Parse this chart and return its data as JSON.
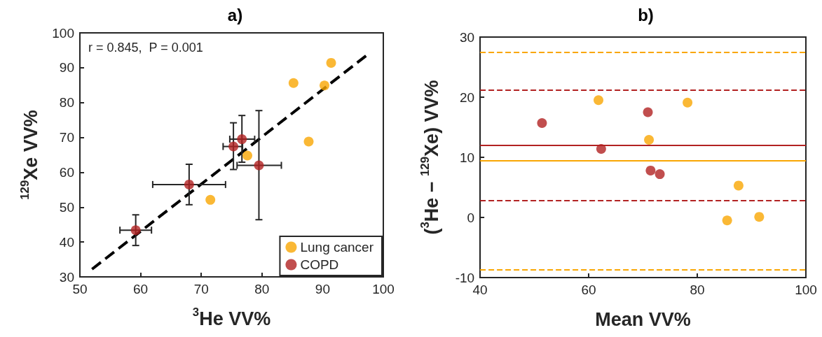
{
  "chart_data": [
    {
      "type": "scatter",
      "title": "a)",
      "xlabel": "$^{3}$He VV%",
      "ylabel": "$^{129}$Xe VV%",
      "xlim": [
        50,
        100
      ],
      "xticks": [
        50,
        60,
        70,
        80,
        90,
        100
      ],
      "ylim": [
        30,
        100
      ],
      "yticks": [
        30,
        40,
        50,
        60,
        70,
        80,
        90,
        100
      ],
      "grid": false,
      "legend": "bottom right",
      "marker": "circle",
      "annotations": [
        "r = 0.845,  P = 0.001"
      ],
      "series": [
        {
          "name": "Lung cancer",
          "color": "#f9a602",
          "x": [
            91.4,
            85.2,
            90.3,
            87.7,
            77.6,
            71.5
          ],
          "values": [
            91.4,
            85.6,
            84.9,
            68.8,
            64.8,
            52.1
          ]
        },
        {
          "name": "COPD",
          "color": "#b22222",
          "x": [
            59.2,
            68.0,
            75.3,
            76.7,
            79.5
          ],
          "values": [
            43.4,
            56.5,
            67.4,
            69.5,
            62.0
          ],
          "errors": [
            [
              39.0,
              47.8
            ],
            [
              50.7,
              62.3
            ],
            [
              60.8,
              74.2
            ],
            [
              62.9,
              76.3
            ],
            [
              46.4,
              77.7
            ]
          ],
          "xerrors": [
            [
              56.6,
              61.8
            ],
            [
              62.0,
              74.0
            ],
            [
              73.6,
              76.8
            ],
            [
              74.7,
              78.8
            ],
            [
              75.9,
              83.2
            ]
          ]
        },
        {
          "type": "line",
          "color": "#000000",
          "line_style": "dashed",
          "marker": "none",
          "x": [
            52.0,
            97.5
          ],
          "values": [
            32.2,
            93.9
          ]
        }
      ]
    },
    {
      "type": "scatter",
      "title": "b)",
      "xlabel": "Mean VV%",
      "ylabel": "($^{3}$He − $^{129}$Xe) VV%",
      "xlim": [
        40,
        100
      ],
      "xticks": [
        40,
        60,
        80,
        100
      ],
      "ylim": [
        -10,
        30
      ],
      "yticks": [
        -10,
        0,
        10,
        20,
        30
      ],
      "grid": false,
      "legend": false,
      "marker": "circle",
      "series": [
        {
          "color": "#f9a602",
          "x": [
            61.8,
            71.1,
            78.2,
            87.6,
            85.5,
            91.4
          ],
          "values": [
            19.5,
            12.9,
            19.1,
            5.3,
            -0.5,
            0.1
          ]
        },
        {
          "color": "#b22222",
          "x": [
            51.4,
            62.3,
            70.9,
            71.4,
            73.1
          ],
          "values": [
            15.7,
            11.4,
            17.5,
            7.8,
            7.2
          ]
        }
      ],
      "ref_lines": [
        {
          "axis": "y",
          "value": 27.5,
          "color": "#f9a602",
          "line_style": "dashed"
        },
        {
          "axis": "y",
          "value": 21.2,
          "color": "#b22222",
          "line_style": "dashed"
        },
        {
          "axis": "y",
          "value": 12.0,
          "color": "#b22222",
          "line_style": "solid"
        },
        {
          "axis": "y",
          "value": 9.4,
          "color": "#f9a602",
          "line_style": "solid"
        },
        {
          "axis": "y",
          "value": 2.8,
          "color": "#b22222",
          "line_style": "dashed"
        },
        {
          "axis": "y",
          "value": -8.7,
          "color": "#f9a602",
          "line_style": "dashed"
        }
      ]
    }
  ]
}
